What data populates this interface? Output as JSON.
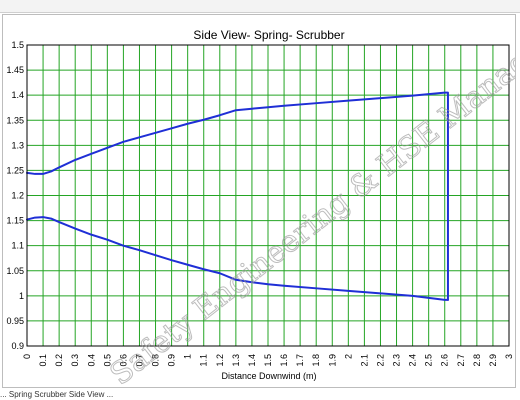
{
  "chart_data": {
    "type": "line",
    "title": "Side View- Spring- Scrubber",
    "xlabel": "Distance Downwind (m)",
    "ylabel": "",
    "xlim": [
      0,
      3
    ],
    "ylim": [
      0.9,
      1.5
    ],
    "x_ticks": [
      "0",
      "0.1",
      "0.2",
      "0.3",
      "0.4",
      "0.5",
      "0.6",
      "0.7",
      "0.8",
      "0.9",
      "1",
      "1.1",
      "1.2",
      "1.3",
      "1.4",
      "1.5",
      "1.6",
      "1.7",
      "1.8",
      "1.9",
      "2",
      "2.1",
      "2.2",
      "2.3",
      "2.4",
      "2.5",
      "2.6",
      "2.7",
      "2.8",
      "2.9",
      "3"
    ],
    "y_ticks": [
      "0.9",
      "0.95",
      "1",
      "1.05",
      "1.1",
      "1.15",
      "1.2",
      "1.25",
      "1.3",
      "1.35",
      "1.4",
      "1.45",
      "1.5"
    ],
    "grid": true,
    "line_color": "#1f2fd6",
    "series": [
      {
        "values": [
          [
            0.0,
            1.245
          ],
          [
            0.05,
            1.243
          ],
          [
            0.1,
            1.243
          ],
          [
            0.15,
            1.248
          ],
          [
            0.2,
            1.256
          ],
          [
            0.3,
            1.271
          ],
          [
            0.4,
            1.283
          ],
          [
            0.5,
            1.295
          ],
          [
            0.6,
            1.307
          ],
          [
            0.7,
            1.316
          ],
          [
            0.8,
            1.325
          ],
          [
            0.9,
            1.334
          ],
          [
            1.0,
            1.343
          ],
          [
            1.1,
            1.351
          ],
          [
            1.2,
            1.36
          ],
          [
            1.3,
            1.37
          ],
          [
            1.4,
            1.373
          ],
          [
            1.5,
            1.376
          ],
          [
            1.6,
            1.379
          ],
          [
            1.8,
            1.384
          ],
          [
            2.0,
            1.389
          ],
          [
            2.2,
            1.394
          ],
          [
            2.4,
            1.399
          ],
          [
            2.5,
            1.402
          ],
          [
            2.6,
            1.405
          ],
          [
            2.62,
            1.405
          ],
          [
            2.62,
            0.992
          ]
        ]
      },
      {
        "values": [
          [
            0.0,
            1.152
          ],
          [
            0.05,
            1.156
          ],
          [
            0.1,
            1.157
          ],
          [
            0.15,
            1.154
          ],
          [
            0.2,
            1.147
          ],
          [
            0.3,
            1.134
          ],
          [
            0.4,
            1.122
          ],
          [
            0.5,
            1.112
          ],
          [
            0.6,
            1.1
          ],
          [
            0.7,
            1.091
          ],
          [
            0.8,
            1.081
          ],
          [
            0.9,
            1.071
          ],
          [
            1.0,
            1.062
          ],
          [
            1.1,
            1.053
          ],
          [
            1.2,
            1.045
          ],
          [
            1.3,
            1.032
          ],
          [
            1.4,
            1.027
          ],
          [
            1.5,
            1.023
          ],
          [
            1.6,
            1.02
          ],
          [
            1.8,
            1.015
          ],
          [
            2.0,
            1.01
          ],
          [
            2.2,
            1.005
          ],
          [
            2.4,
            1.0
          ],
          [
            2.6,
            0.992
          ],
          [
            2.62,
            0.992
          ]
        ]
      }
    ]
  },
  "watermark": "Safety Engineering & HSE Manage",
  "bottom_caption": "... Spring Scrubber Side View ..."
}
